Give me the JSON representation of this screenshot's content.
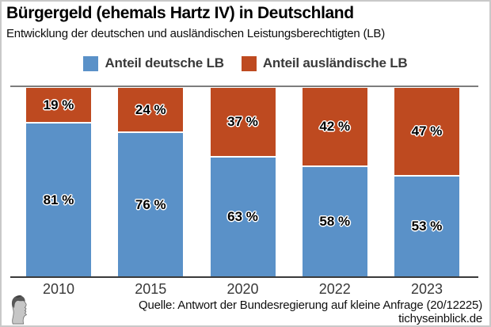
{
  "header": {
    "title": "Bürgergeld (ehemals Hartz IV) in Deutschland",
    "subtitle": "Entwicklung der deutschen und ausländischen Leistungsberechtigten (LB)"
  },
  "legend": {
    "items": [
      {
        "label": "Anteil deutsche LB",
        "color": "#5a91c8"
      },
      {
        "label": "Anteil ausländische LB",
        "color": "#be4a20"
      }
    ]
  },
  "chart_data": {
    "type": "bar",
    "stacked": true,
    "orientation": "vertical",
    "categories": [
      "2010",
      "2015",
      "2020",
      "2022",
      "2023"
    ],
    "series": [
      {
        "name": "Anteil deutsche LB",
        "color": "#5a91c8",
        "position": "bottom",
        "values": [
          81,
          76,
          63,
          58,
          53
        ],
        "labels": [
          "81 %",
          "76 %",
          "63 %",
          "58 %",
          "53 %"
        ]
      },
      {
        "name": "Anteil ausländische LB",
        "color": "#be4a20",
        "position": "top",
        "values": [
          19,
          24,
          37,
          42,
          47
        ],
        "labels": [
          "19 %",
          "24 %",
          "37 %",
          "42 %",
          "47 %"
        ]
      }
    ],
    "unit": "%",
    "ylim": [
      0,
      100
    ],
    "grid": false,
    "legend_position": "top",
    "label_style": "black-bold-white-halo"
  },
  "footer": {
    "source": "Quelle: Antwort der Bundesregierung auf kleine Anfrage (20/12225)",
    "website": "tichyseinblick.de",
    "logo": "tichys-einblick-classical-head"
  }
}
